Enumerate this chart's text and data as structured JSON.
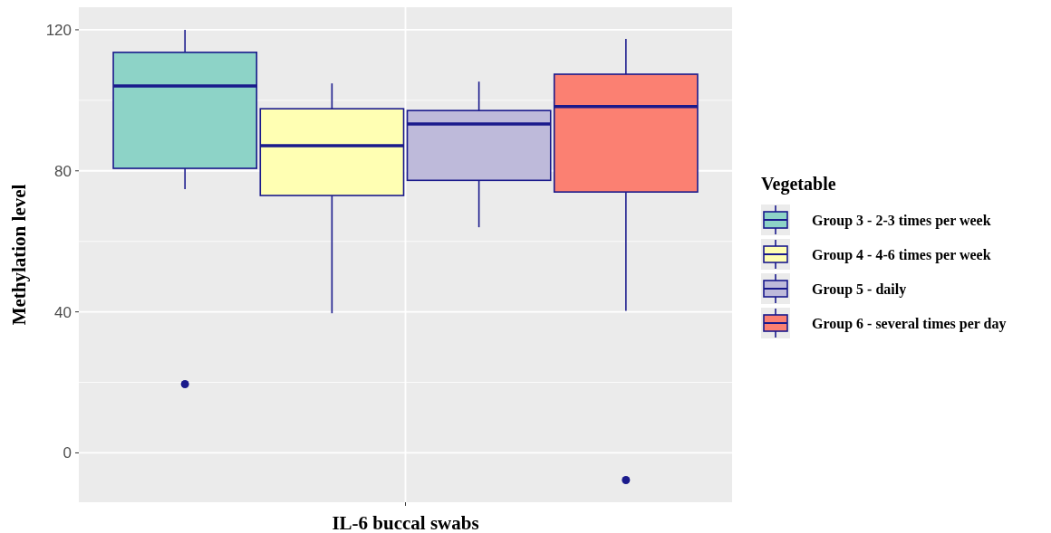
{
  "chart_data": {
    "type": "box",
    "xlabel": "IL-6 buccal swabs",
    "ylabel": "Methylation level",
    "legend_title": "Vegetable",
    "categories": [
      null
    ],
    "ylim": [
      -14,
      126.4
    ],
    "yticks": [
      0,
      40,
      80,
      120
    ],
    "grid": true,
    "legend": "right",
    "series": [
      {
        "name": "Group 3 - 2-3 times per week",
        "color": "#8dd3c7",
        "boxes": [
          {
            "low": 74.8,
            "q1": 80.7,
            "median": 104.1,
            "q3": 113.6,
            "high": 120,
            "outliers": [
              19.5
            ]
          }
        ]
      },
      {
        "name": "Group 4 - 4-6 times per week",
        "color": "#ffffb3",
        "boxes": [
          {
            "low": 39.6,
            "q1": 73,
            "median": 87.1,
            "q3": 97.6,
            "high": 104.8
          }
        ]
      },
      {
        "name": "Group 5 - daily",
        "color": "#bebada",
        "boxes": [
          {
            "low": 64,
            "q1": 77.3,
            "median": 93.3,
            "q3": 97.1,
            "high": 105.3
          }
        ]
      },
      {
        "name": "Group 6 - several times per day",
        "color": "#fb8072",
        "boxes": [
          {
            "low": 40.3,
            "q1": 74,
            "median": 98.2,
            "q3": 107.4,
            "high": 117.4,
            "outliers": [
              -7.7
            ]
          }
        ]
      }
    ]
  }
}
